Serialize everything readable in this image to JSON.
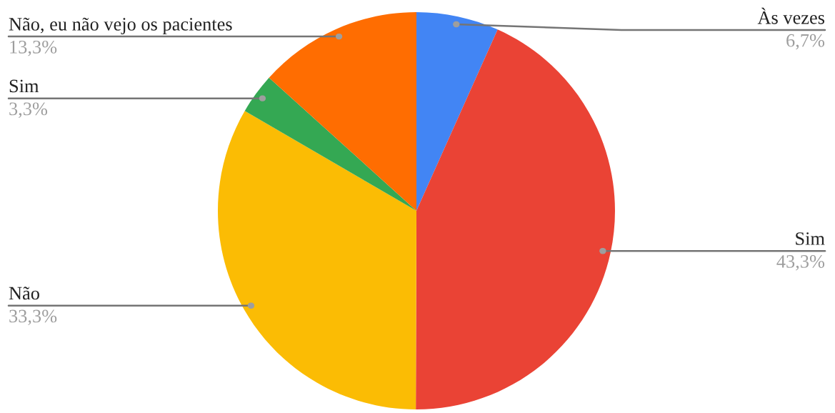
{
  "chart_data": {
    "type": "pie",
    "categories": [
      "Às vezes",
      "Sim",
      "Não",
      "Sim",
      "Não, eu não vejo os pacientes"
    ],
    "values": [
      6.7,
      43.3,
      33.3,
      3.3,
      13.3
    ],
    "value_labels": [
      "6,7%",
      "43,3%",
      "33,3%",
      "3,3%",
      "13,3%"
    ],
    "colors": [
      "#4285f4",
      "#ea4335",
      "#fbbc04",
      "#34a853",
      "#ff6d01"
    ],
    "legend": false
  }
}
